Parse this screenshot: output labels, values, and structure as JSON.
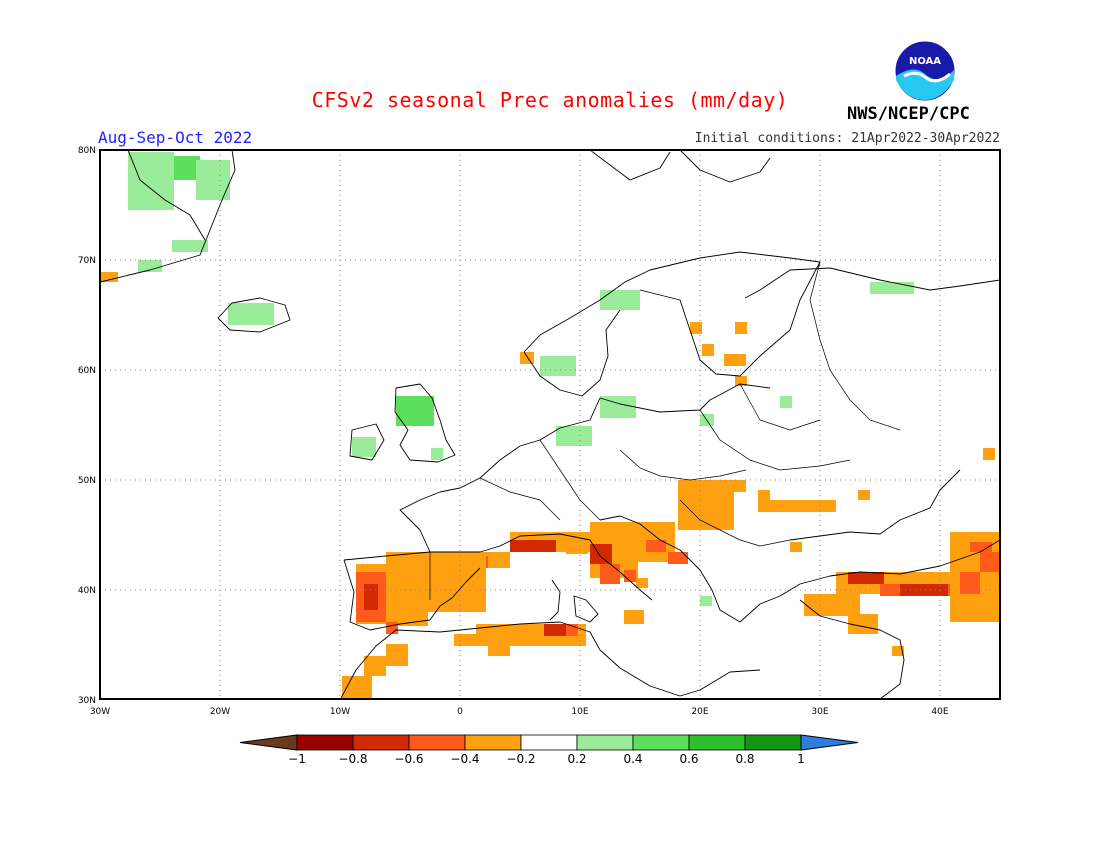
{
  "header": {
    "title": "CFSv2 seasonal Prec anomalies (mm/day)",
    "season": "Aug-Sep-Oct 2022",
    "initial_conditions": "Initial conditions: 21Apr2022-30Apr2022",
    "agency": "NWS/NCEP/CPC",
    "logo_text": "NOAA"
  },
  "map": {
    "lat_labels": [
      "80N",
      "70N",
      "60N",
      "50N",
      "40N",
      "30N"
    ],
    "lon_labels": [
      "30W",
      "20W",
      "10W",
      "0",
      "10E",
      "20E",
      "30E",
      "40E"
    ]
  },
  "legend": {
    "tick_labels": [
      "-1",
      "-0.8",
      "-0.6",
      "-0.4",
      "-0.2",
      "0.2",
      "0.4",
      "0.6",
      "0.8",
      "1"
    ],
    "colors": {
      "lt_-1": "#6b3a1e",
      "-1_-0.8": "#990000",
      "-0.8_-0.6": "#d22a00",
      "-0.6_-0.4": "#ff5a1a",
      "-0.4_-0.2": "#ffa010",
      "-0.2_0.2": "#ffffff",
      "0.2_0.4": "#9aeb9a",
      "0.4_0.6": "#5ce05c",
      "0.6_0.8": "#2cc02c",
      "0.8_1": "#149614",
      "gt_1": "#2f7de0"
    }
  }
}
